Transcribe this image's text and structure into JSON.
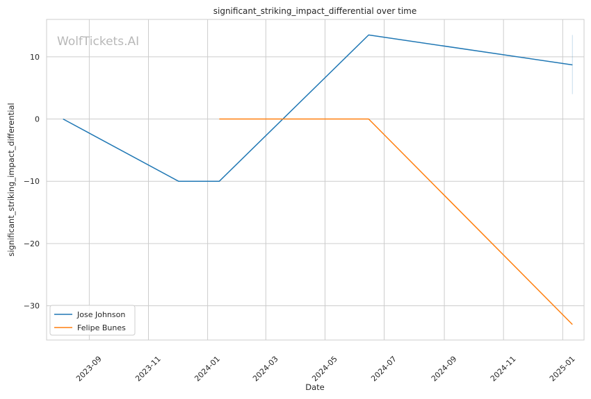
{
  "watermark": "WolfTickets.AI",
  "chart_data": {
    "type": "line",
    "title": "significant_striking_impact_differential over time",
    "xlabel": "Date",
    "ylabel": "significant_striking_impact_differential",
    "xlim": [
      "2023-07-19",
      "2025-01-23"
    ],
    "ylim": [
      -35.5,
      16
    ],
    "y_ticks": [
      10,
      0,
      -10,
      -20,
      -30
    ],
    "y_tick_labels": [
      "10",
      "0",
      "−10",
      "−20",
      "−30"
    ],
    "x_ticks": [
      "2023-09-01",
      "2023-11-01",
      "2024-01-01",
      "2024-03-01",
      "2024-05-01",
      "2024-07-01",
      "2024-09-01",
      "2024-11-01",
      "2025-01-01"
    ],
    "x_tick_labels": [
      "2023-09",
      "2023-11",
      "2024-01",
      "2024-03",
      "2024-05",
      "2024-07",
      "2024-09",
      "2024-11",
      "2025-01"
    ],
    "grid": true,
    "legend_position": "lower-left",
    "series": [
      {
        "name": "Jose Johnson",
        "color": "#1f77b4",
        "x": [
          "2023-08-05",
          "2023-12-02",
          "2024-01-13",
          "2024-06-15",
          "2025-01-11"
        ],
        "y": [
          0,
          -10,
          -10,
          13.5,
          8.7
        ]
      },
      {
        "name": "Felipe Bunes",
        "color": "#ff7f0e",
        "x": [
          "2024-01-13",
          "2024-06-15",
          "2025-01-11"
        ],
        "y": [
          0,
          0,
          -33
        ]
      }
    ]
  }
}
